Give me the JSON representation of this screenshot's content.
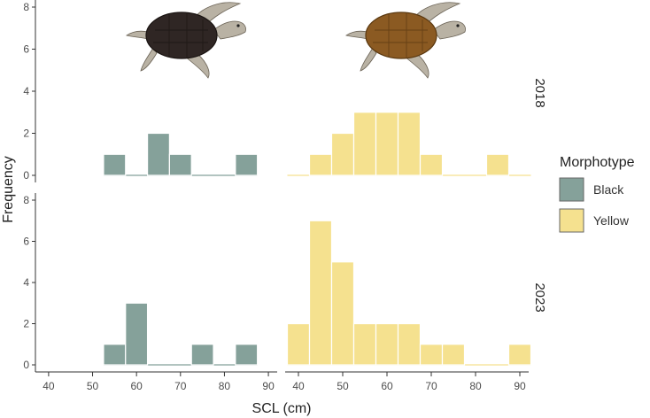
{
  "chart_data": {
    "type": "bar",
    "subtype": "faceted-histogram",
    "xlabel": "SCL (cm)",
    "ylabel": "Frequency",
    "xlim": [
      37,
      92
    ],
    "xticks": [
      40,
      50,
      60,
      70,
      80,
      90
    ],
    "ylim": [
      0,
      8
    ],
    "yticks": [
      0,
      2,
      4,
      6,
      8
    ],
    "bin_width": 5,
    "rows": [
      "2018",
      "2023"
    ],
    "columns": [
      "Black",
      "Yellow"
    ],
    "legend": {
      "title": "Morphotype",
      "position": "right",
      "items": [
        {
          "label": "Black",
          "color": "#85a19a"
        },
        {
          "label": "Yellow",
          "color": "#f5e18f"
        }
      ]
    },
    "illustrations": [
      {
        "column": "Black",
        "name": "black-sea-turtle-icon"
      },
      {
        "column": "Yellow",
        "name": "yellow-sea-turtle-icon"
      }
    ],
    "panels": [
      {
        "year": "2018",
        "morphotype": "Black",
        "color": "#85a19a",
        "bin_starts": [
          52.5,
          57.5,
          62.5,
          67.5,
          72.5,
          77.5,
          82.5
        ],
        "counts": [
          1,
          0,
          2,
          1,
          0,
          0,
          1
        ]
      },
      {
        "year": "2018",
        "morphotype": "Yellow",
        "color": "#f5e18f",
        "bin_starts": [
          37.5,
          42.5,
          47.5,
          52.5,
          57.5,
          62.5,
          67.5,
          72.5,
          77.5,
          82.5,
          87.5
        ],
        "counts": [
          0,
          1,
          2,
          3,
          3,
          3,
          1,
          0,
          0,
          1,
          0
        ]
      },
      {
        "year": "2023",
        "morphotype": "Black",
        "color": "#85a19a",
        "bin_starts": [
          52.5,
          57.5,
          62.5,
          67.5,
          72.5,
          77.5,
          82.5
        ],
        "counts": [
          1,
          3,
          0,
          0,
          1,
          0,
          1
        ]
      },
      {
        "year": "2023",
        "morphotype": "Yellow",
        "color": "#f5e18f",
        "bin_starts": [
          37.5,
          42.5,
          47.5,
          52.5,
          57.5,
          62.5,
          67.5,
          72.5,
          77.5,
          82.5,
          87.5
        ],
        "counts": [
          2,
          7,
          5,
          2,
          2,
          2,
          1,
          1,
          0,
          0,
          1
        ]
      }
    ]
  }
}
